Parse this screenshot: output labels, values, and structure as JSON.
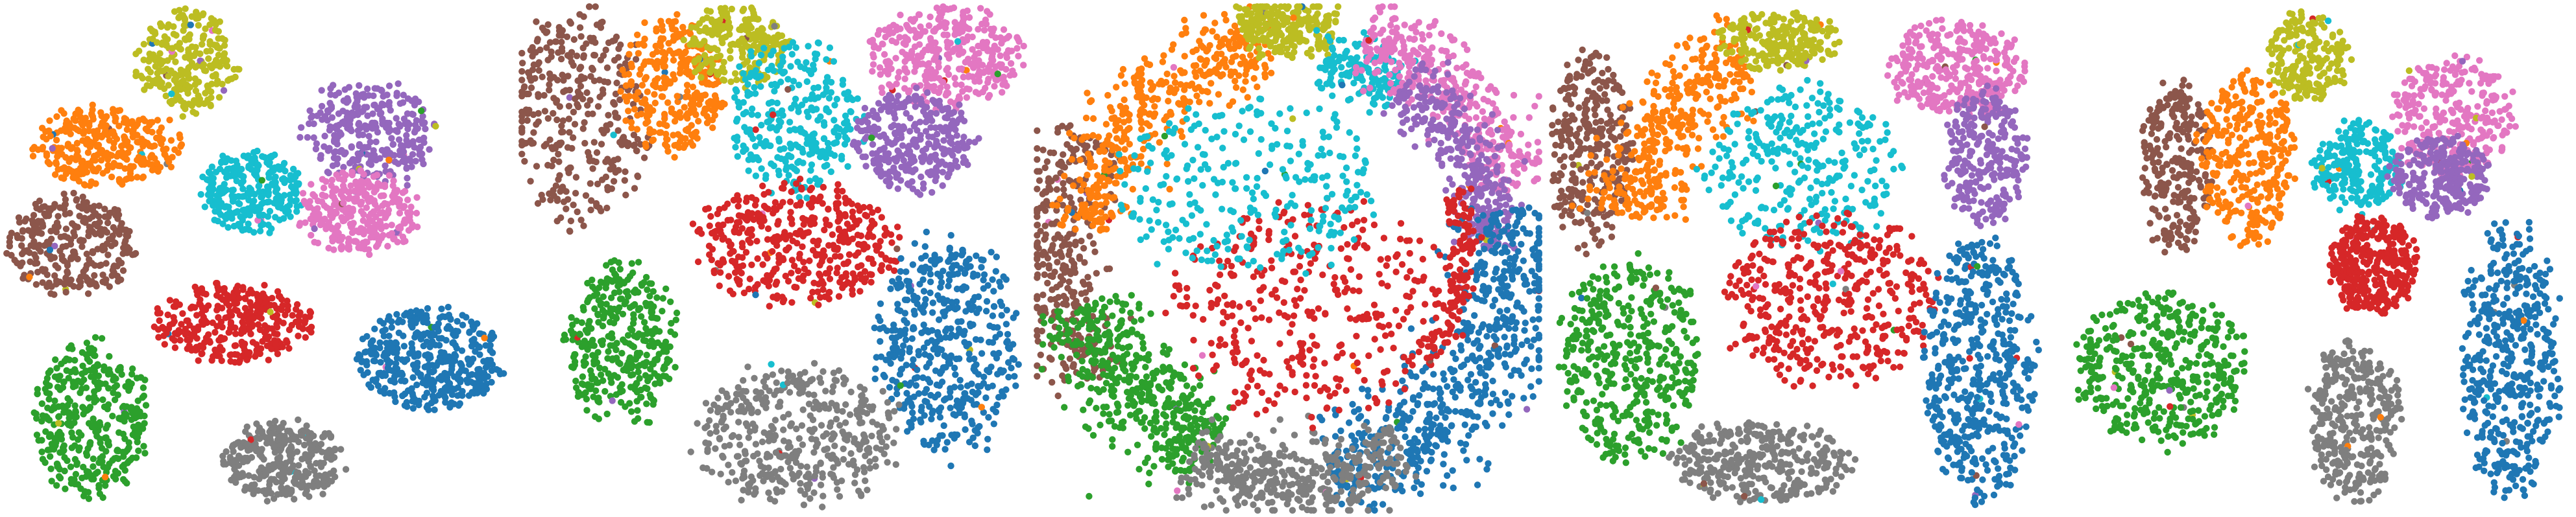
{
  "figure": {
    "palette": {
      "blue": "#1f77b4",
      "orange": "#ff7f0e",
      "green": "#2ca02c",
      "red": "#d62728",
      "purple": "#9467bd",
      "brown": "#8c564b",
      "pink": "#e377c2",
      "gray": "#7f7f7f",
      "olive": "#bcbd22",
      "cyan": "#17becf"
    }
  },
  "chart_data": [
    {
      "type": "scatter",
      "title": "",
      "xlabel": "",
      "ylabel": "",
      "grid": false,
      "axes_visible": false,
      "xlim": [
        0,
        100
      ],
      "ylim": [
        0,
        100
      ],
      "clusters": [
        {
          "color": "olive",
          "cx": 36,
          "cy": 89,
          "rx": 10,
          "ry": 10,
          "shape": "blob",
          "n": 260
        },
        {
          "color": "orange",
          "cx": 20,
          "cy": 72,
          "rx": 15,
          "ry": 8,
          "shape": "blob",
          "n": 320
        },
        {
          "color": "brown",
          "cx": 13,
          "cy": 53,
          "rx": 13,
          "ry": 10,
          "shape": "blob",
          "n": 300
        },
        {
          "color": "cyan",
          "cx": 49,
          "cy": 63,
          "rx": 10,
          "ry": 8,
          "shape": "blob",
          "n": 280
        },
        {
          "color": "purple",
          "cx": 72,
          "cy": 75,
          "rx": 13,
          "ry": 10,
          "shape": "blob",
          "n": 300
        },
        {
          "color": "pink",
          "cx": 70,
          "cy": 59,
          "rx": 12,
          "ry": 8,
          "shape": "blob",
          "n": 300
        },
        {
          "color": "red",
          "cx": 45,
          "cy": 37,
          "rx": 15,
          "ry": 8,
          "shape": "blob",
          "n": 330
        },
        {
          "color": "blue",
          "cx": 84,
          "cy": 30,
          "rx": 15,
          "ry": 10,
          "shape": "blob",
          "n": 420
        },
        {
          "color": "green",
          "cx": 17,
          "cy": 18,
          "rx": 11,
          "ry": 16,
          "shape": "blob",
          "n": 380
        },
        {
          "color": "gray",
          "cx": 55,
          "cy": 10,
          "rx": 12,
          "ry": 8,
          "shape": "blob",
          "n": 320
        }
      ]
    },
    {
      "type": "scatter",
      "title": "",
      "xlabel": "",
      "ylabel": "",
      "grid": false,
      "axes_visible": false,
      "xlim": [
        0,
        100
      ],
      "ylim": [
        0,
        100
      ],
      "clusters": [
        {
          "color": "brown",
          "cx": 12,
          "cy": 78,
          "rx": 14,
          "ry": 22,
          "shape": "blob",
          "n": 340
        },
        {
          "color": "orange",
          "cx": 30,
          "cy": 84,
          "rx": 10,
          "ry": 14,
          "shape": "blob",
          "n": 300
        },
        {
          "color": "olive",
          "cx": 43,
          "cy": 92,
          "rx": 10,
          "ry": 8,
          "shape": "blob",
          "n": 220
        },
        {
          "color": "cyan",
          "cx": 55,
          "cy": 78,
          "rx": 13,
          "ry": 16,
          "shape": "blob",
          "n": 300
        },
        {
          "color": "pink",
          "cx": 84,
          "cy": 90,
          "rx": 16,
          "ry": 10,
          "shape": "blob",
          "n": 360
        },
        {
          "color": "purple",
          "cx": 78,
          "cy": 73,
          "rx": 12,
          "ry": 10,
          "shape": "blob",
          "n": 320
        },
        {
          "color": "red",
          "cx": 55,
          "cy": 53,
          "rx": 20,
          "ry": 12,
          "shape": "blob",
          "n": 420
        },
        {
          "color": "green",
          "cx": 20,
          "cy": 33,
          "rx": 11,
          "ry": 16,
          "shape": "blob",
          "n": 360
        },
        {
          "color": "blue",
          "cx": 85,
          "cy": 33,
          "rx": 14,
          "ry": 22,
          "shape": "blob",
          "n": 460
        },
        {
          "color": "gray",
          "cx": 55,
          "cy": 15,
          "rx": 20,
          "ry": 14,
          "shape": "blob",
          "n": 420
        }
      ]
    },
    {
      "type": "scatter",
      "title": "",
      "xlabel": "",
      "ylabel": "",
      "grid": false,
      "axes_visible": false,
      "xlim": [
        0,
        100
      ],
      "ylim": [
        0,
        100
      ],
      "clusters": [
        {
          "color": "brown",
          "cx": 50,
          "cy": 52,
          "rx": 46,
          "ry": 45,
          "shape": "arc",
          "a0": 150,
          "a1": 215,
          "thick": 9,
          "n": 340
        },
        {
          "color": "orange",
          "cx": 50,
          "cy": 52,
          "rx": 40,
          "ry": 40,
          "shape": "arc",
          "a0": 95,
          "a1": 175,
          "thick": 8,
          "n": 420
        },
        {
          "color": "olive",
          "cx": 50,
          "cy": 52,
          "rx": 44,
          "ry": 44,
          "shape": "arc",
          "a0": 78,
          "a1": 102,
          "thick": 6,
          "n": 240
        },
        {
          "color": "cyan",
          "cx": 50,
          "cy": 52,
          "rx": 38,
          "ry": 38,
          "shape": "arc",
          "a0": 55,
          "a1": 80,
          "thick": 6,
          "n": 160
        },
        {
          "color": "pink",
          "cx": 50,
          "cy": 52,
          "rx": 46,
          "ry": 45,
          "shape": "arc",
          "a0": 15,
          "a1": 70,
          "thick": 8,
          "n": 380
        },
        {
          "color": "purple",
          "cx": 50,
          "cy": 52,
          "rx": 40,
          "ry": 40,
          "shape": "arc",
          "a0": 0,
          "a1": 55,
          "thick": 7,
          "n": 320
        },
        {
          "color": "blue",
          "cx": 50,
          "cy": 52,
          "rx": 45,
          "ry": 45,
          "shape": "arc",
          "a0": -80,
          "a1": 10,
          "thick": 11,
          "n": 620
        },
        {
          "color": "green",
          "cx": 50,
          "cy": 52,
          "rx": 42,
          "ry": 42,
          "shape": "arc",
          "a0": 195,
          "a1": 250,
          "thick": 10,
          "n": 460
        },
        {
          "color": "gray",
          "cx": 50,
          "cy": 52,
          "rx": 46,
          "ry": 46,
          "shape": "arc",
          "a0": 245,
          "a1": 300,
          "thick": 8,
          "n": 420
        },
        {
          "color": "red",
          "cx": 55,
          "cy": 40,
          "rx": 28,
          "ry": 22,
          "shape": "blob",
          "n": 360
        },
        {
          "color": "red",
          "cx": 50,
          "cy": 52,
          "rx": 35,
          "ry": 34,
          "shape": "arc",
          "a0": -40,
          "a1": 20,
          "thick": 3,
          "n": 140
        },
        {
          "color": "cyan",
          "cx": 42,
          "cy": 64,
          "rx": 26,
          "ry": 18,
          "shape": "blob",
          "n": 280
        }
      ]
    },
    {
      "type": "scatter",
      "title": "",
      "xlabel": "",
      "ylabel": "",
      "grid": false,
      "axes_visible": false,
      "xlim": [
        0,
        100
      ],
      "ylim": [
        0,
        100
      ],
      "clusters": [
        {
          "color": "brown",
          "cx": 8,
          "cy": 72,
          "rx": 8,
          "ry": 20,
          "shape": "blob",
          "n": 300
        },
        {
          "color": "orange",
          "cx": 50,
          "cy": 55,
          "rx": 34,
          "ry": 36,
          "shape": "arc",
          "a0": 110,
          "a1": 175,
          "thick": 9,
          "n": 380
        },
        {
          "color": "olive",
          "cx": 45,
          "cy": 93,
          "rx": 12,
          "ry": 6,
          "shape": "blob",
          "n": 220
        },
        {
          "color": "cyan",
          "cx": 50,
          "cy": 68,
          "rx": 20,
          "ry": 16,
          "shape": "blob",
          "n": 300
        },
        {
          "color": "pink",
          "cx": 80,
          "cy": 88,
          "rx": 14,
          "ry": 10,
          "shape": "blob",
          "n": 320
        },
        {
          "color": "purple",
          "cx": 86,
          "cy": 70,
          "rx": 8,
          "ry": 14,
          "shape": "blob",
          "n": 260
        },
        {
          "color": "red",
          "cx": 55,
          "cy": 42,
          "rx": 22,
          "ry": 17,
          "shape": "blob",
          "n": 440
        },
        {
          "color": "green",
          "cx": 16,
          "cy": 30,
          "rx": 14,
          "ry": 20,
          "shape": "blob",
          "n": 420
        },
        {
          "color": "blue",
          "cx": 85,
          "cy": 28,
          "rx": 11,
          "ry": 26,
          "shape": "blob",
          "n": 480
        },
        {
          "color": "gray",
          "cx": 42,
          "cy": 10,
          "rx": 18,
          "ry": 8,
          "shape": "blob",
          "n": 340
        }
      ]
    },
    {
      "type": "scatter",
      "title": "",
      "xlabel": "",
      "ylabel": "",
      "grid": false,
      "axes_visible": false,
      "xlim": [
        0,
        100
      ],
      "ylim": [
        0,
        100
      ],
      "clusters": [
        {
          "color": "olive",
          "cx": 48,
          "cy": 90,
          "rx": 8,
          "ry": 9,
          "shape": "blob",
          "n": 200
        },
        {
          "color": "brown",
          "cx": 22,
          "cy": 68,
          "rx": 7,
          "ry": 17,
          "shape": "blob",
          "n": 260
        },
        {
          "color": "orange",
          "cx": 36,
          "cy": 70,
          "rx": 10,
          "ry": 17,
          "shape": "blob",
          "n": 320
        },
        {
          "color": "cyan",
          "cx": 58,
          "cy": 68,
          "rx": 9,
          "ry": 9,
          "shape": "blob",
          "n": 240
        },
        {
          "color": "pink",
          "cx": 77,
          "cy": 78,
          "rx": 12,
          "ry": 12,
          "shape": "blob",
          "n": 300
        },
        {
          "color": "purple",
          "cx": 74,
          "cy": 66,
          "rx": 10,
          "ry": 8,
          "shape": "blob",
          "n": 260
        },
        {
          "color": "red",
          "cx": 61,
          "cy": 49,
          "rx": 9,
          "ry": 10,
          "shape": "blob",
          "n": 360
        },
        {
          "color": "green",
          "cx": 19,
          "cy": 28,
          "rx": 17,
          "ry": 15,
          "shape": "blob",
          "n": 420
        },
        {
          "color": "blue",
          "cx": 88,
          "cy": 30,
          "rx": 10,
          "ry": 27,
          "shape": "blob",
          "n": 460
        },
        {
          "color": "gray",
          "cx": 57,
          "cy": 18,
          "rx": 9,
          "ry": 16,
          "shape": "blob",
          "n": 340
        }
      ]
    }
  ]
}
